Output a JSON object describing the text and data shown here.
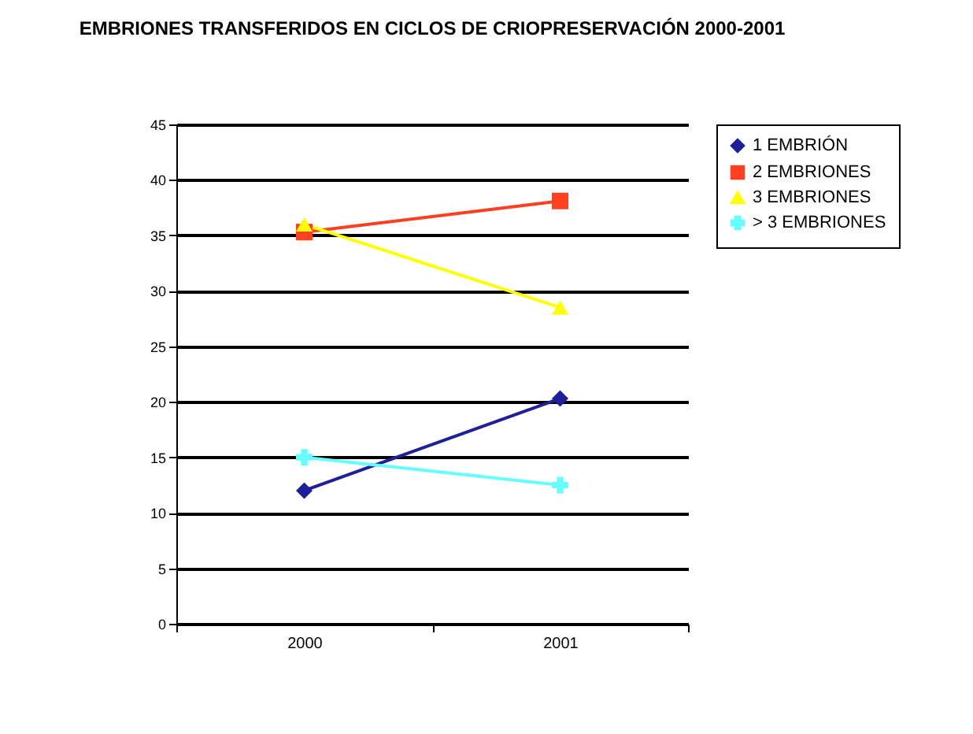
{
  "chart_data": {
    "type": "line",
    "title": "EMBRIONES TRANSFERIDOS EN CICLOS DE CRIOPRESERVACIÓN 2000-2001",
    "categories": [
      "2000",
      "2001"
    ],
    "series": [
      {
        "name": "1 EMBRIÓN",
        "color": "#1f1f9a",
        "marker": "diamond",
        "values": [
          12,
          20.3
        ]
      },
      {
        "name": "2 EMBRIONES",
        "color": "#ff4020",
        "marker": "square",
        "values": [
          35.3,
          38.1
        ]
      },
      {
        "name": "3 EMBRIONES",
        "color": "#ffff00",
        "marker": "triangle",
        "values": [
          36,
          28.5
        ]
      },
      {
        "name": "> 3 EMBRIONES",
        "color": "#66ffff",
        "marker": "cross",
        "values": [
          15,
          12.5
        ]
      }
    ],
    "ylim": [
      0,
      45
    ],
    "yticks": [
      0,
      5,
      10,
      15,
      20,
      25,
      30,
      35,
      40,
      45
    ],
    "grid": "y",
    "legend": "right"
  }
}
